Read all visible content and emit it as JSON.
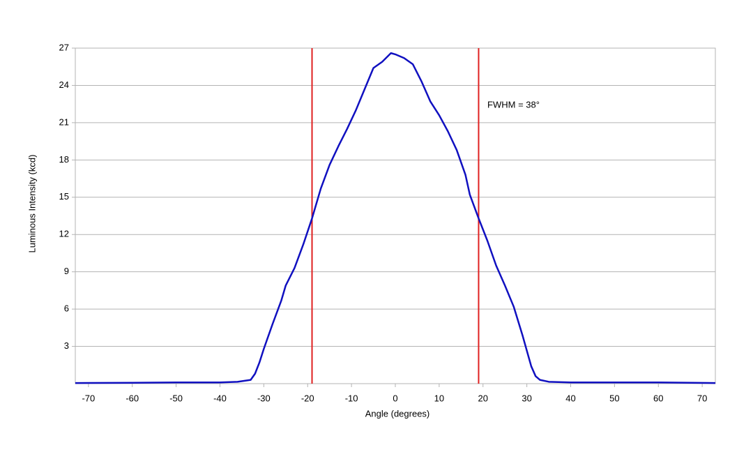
{
  "chart_data": {
    "type": "line",
    "x_label": "Angle (degrees)",
    "y_label": "Luminous Intensity (kcd)",
    "xlim": [
      -73,
      73
    ],
    "ylim": [
      0,
      27
    ],
    "xticks": [
      -70,
      -60,
      -50,
      -40,
      -30,
      -20,
      -10,
      0,
      10,
      20,
      30,
      40,
      50,
      60,
      70
    ],
    "yticks": [
      3,
      6,
      9,
      12,
      15,
      18,
      21,
      24,
      27
    ],
    "grid": true,
    "series": [
      {
        "color": "#1010c0",
        "x": [
          -73,
          -60,
          -50,
          -40,
          -36,
          -33,
          -32,
          -31,
          -30,
          -28,
          -26,
          -25,
          -23,
          -21,
          -19,
          -17,
          -15,
          -13,
          -11,
          -9,
          -7,
          -5,
          -3,
          -1,
          0,
          2,
          4,
          6,
          8,
          10,
          12,
          14,
          16,
          17,
          19,
          21,
          23,
          25,
          27,
          29,
          31,
          32,
          33,
          35,
          40,
          50,
          60,
          73
        ],
        "values": [
          0.05,
          0.07,
          0.1,
          0.1,
          0.15,
          0.3,
          0.8,
          1.7,
          2.8,
          4.8,
          6.7,
          7.9,
          9.3,
          11.2,
          13.3,
          15.7,
          17.6,
          19.1,
          20.5,
          22.0,
          23.7,
          25.4,
          25.9,
          26.6,
          26.5,
          26.2,
          25.7,
          24.3,
          22.7,
          21.6,
          20.3,
          18.8,
          16.8,
          15.2,
          13.3,
          11.5,
          9.5,
          7.9,
          6.2,
          3.9,
          1.4,
          0.6,
          0.3,
          0.15,
          0.1,
          0.1,
          0.1,
          0.05
        ]
      }
    ],
    "vlines": {
      "color": "#e02020",
      "x": [
        -19,
        19
      ]
    },
    "annotation": {
      "text": "FWHM = 38°",
      "x": 21,
      "y": 22.4
    }
  }
}
